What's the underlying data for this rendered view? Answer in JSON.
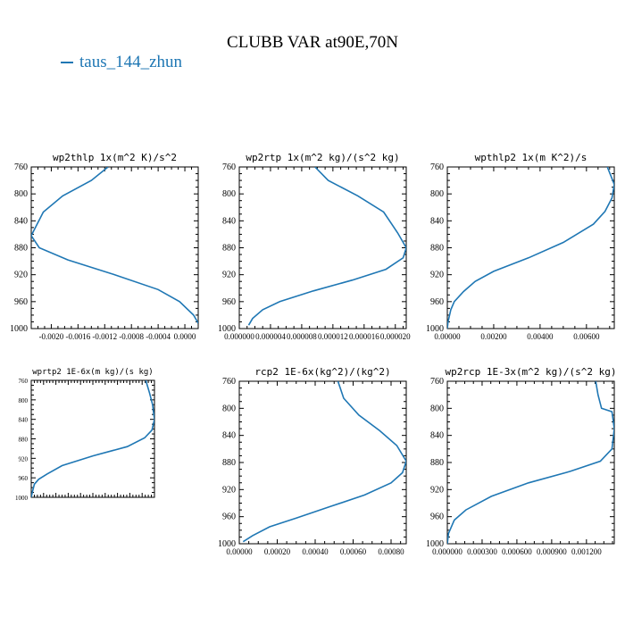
{
  "figure": {
    "title": "CLUBB VAR at90E,70N",
    "legend": [
      {
        "label": "taus_144_zhun",
        "color": "#1f77b4"
      }
    ]
  },
  "chart_data": [
    {
      "type": "line",
      "title": "wp2thlp  1x(m^2 K)/s^2",
      "xlim": [
        -0.0023,
        0.0002
      ],
      "ylim": [
        760,
        1000
      ],
      "yticks": [
        760,
        800,
        840,
        880,
        920,
        960,
        1000
      ],
      "xticks": [
        -0.002,
        -0.0016,
        -0.0012,
        -0.0008,
        -0.0004,
        0.0
      ],
      "xticklabels": [
        "-0.0020",
        "-0.0016",
        "-0.0012",
        "-0.0008",
        "-0.0004",
        "0.0000"
      ],
      "series": [
        {
          "name": "taus_144_zhun",
          "color": "#1f77b4",
          "x": [
            -0.00115,
            -0.0014,
            -0.00183,
            -0.00212,
            -0.0023,
            -0.00218,
            -0.00175,
            -0.00105,
            -0.0004,
            -8e-05,
            0.00013,
            0.0002
          ],
          "y": [
            760,
            780,
            803,
            827,
            862,
            880,
            898,
            920,
            942,
            960,
            980,
            992
          ]
        }
      ]
    },
    {
      "type": "line",
      "title": "wp2rtp  1x(m^2 kg)/(s^2 kg)",
      "xlim": [
        0.0,
        2.14e-05
      ],
      "ylim": [
        760,
        1000
      ],
      "yticks": [
        760,
        800,
        840,
        880,
        920,
        960,
        1000
      ],
      "xticks": [
        0.0,
        4e-06,
        8e-06,
        1.2e-05,
        1.6e-05,
        2e-05
      ],
      "xticklabels": [
        "0.000000",
        "0.000004",
        "0.000008",
        "0.000012",
        "0.000016",
        "0.000020"
      ],
      "series": [
        {
          "name": "taus_144_zhun",
          "color": "#1f77b4",
          "x": [
            9.7e-06,
            1.14e-05,
            1.52e-05,
            1.85e-05,
            2.03e-05,
            2.14e-05,
            2.1e-05,
            1.88e-05,
            1.45e-05,
            9.5e-06,
            5.2e-06,
            3e-06,
            1.7e-06,
            1.2e-06
          ],
          "y": [
            760,
            780,
            803,
            827,
            858,
            880,
            895,
            912,
            928,
            944,
            960,
            972,
            985,
            995
          ]
        }
      ]
    },
    {
      "type": "line",
      "title": "wpthlp2  1x(m K^2)/s",
      "xlim": [
        0.0,
        0.0072
      ],
      "ylim": [
        760,
        1000
      ],
      "yticks": [
        760,
        800,
        840,
        880,
        920,
        960,
        1000
      ],
      "xticks": [
        0.0,
        0.002,
        0.004,
        0.006
      ],
      "xticklabels": [
        "0.00000",
        "0.00200",
        "0.00400",
        "0.00600"
      ],
      "series": [
        {
          "name": "taus_144_zhun",
          "color": "#1f77b4",
          "x": [
            0.0069,
            0.0072,
            0.0071,
            0.0068,
            0.0063,
            0.005,
            0.0035,
            0.002,
            0.0012,
            0.0007,
            0.0003,
            0.00015,
            3e-05,
            0.0
          ],
          "y": [
            760,
            786,
            806,
            826,
            845,
            872,
            895,
            915,
            930,
            945,
            960,
            972,
            990,
            1000
          ]
        }
      ]
    },
    {
      "type": "line",
      "title": "wprtp2  1E-6x(m kg)/(s kg)",
      "xlim": [
        0.0,
        1.0
      ],
      "ylim": [
        760,
        1000
      ],
      "yticks": [
        760,
        800,
        840,
        880,
        920,
        960,
        1000
      ],
      "series": [
        {
          "name": "taus_144_zhun",
          "color": "#1f77b4",
          "x": [
            0.93,
            0.96,
            0.985,
            1.0,
            0.98,
            0.92,
            0.78,
            0.5,
            0.25,
            0.13,
            0.06,
            0.025,
            0.01,
            0.0
          ],
          "y": [
            760,
            786,
            810,
            840,
            862,
            878,
            896,
            915,
            935,
            952,
            963,
            973,
            988,
            1000
          ]
        }
      ]
    },
    {
      "type": "line",
      "title": "rcp2  1E-6x(kg^2)/(kg^2)",
      "xlim": [
        0.0,
        0.00088
      ],
      "ylim": [
        760,
        1000
      ],
      "yticks": [
        760,
        800,
        840,
        880,
        920,
        960,
        1000
      ],
      "xticks": [
        0.0,
        0.0002,
        0.0004,
        0.0006,
        0.0008
      ],
      "xticklabels": [
        "0.00000",
        "0.00020",
        "0.00040",
        "0.00060",
        "0.00080"
      ],
      "series": [
        {
          "name": "taus_144_zhun",
          "color": "#1f77b4",
          "x": [
            0.00052,
            0.00055,
            0.00063,
            0.00074,
            0.00083,
            0.00088,
            0.00086,
            0.0008,
            0.00066,
            0.00048,
            0.0003,
            0.00016,
            7e-05,
            2e-05
          ],
          "y": [
            760,
            785,
            810,
            833,
            855,
            878,
            895,
            910,
            928,
            945,
            962,
            975,
            988,
            997
          ]
        }
      ]
    },
    {
      "type": "line",
      "title": "wp2rcp  1E-3x(m^2 kg)/(s^2 kg)",
      "xlim": [
        0.0,
        0.00144
      ],
      "ylim": [
        760,
        1000
      ],
      "yticks": [
        760,
        800,
        840,
        880,
        920,
        960,
        1000
      ],
      "xticks": [
        0.0,
        0.0003,
        0.0006,
        0.0009,
        0.0012
      ],
      "xticklabels": [
        "0.000000",
        "0.000300",
        "0.000600",
        "0.000900",
        "0.001200"
      ],
      "series": [
        {
          "name": "taus_144_zhun",
          "color": "#1f77b4",
          "x": [
            0.00128,
            0.0013,
            0.00133,
            0.00142,
            0.00144,
            0.00142,
            0.00132,
            0.00106,
            0.0007,
            0.00038,
            0.00016,
            6e-05,
            1e-05,
            0.0
          ],
          "y": [
            760,
            780,
            800,
            805,
            830,
            860,
            878,
            893,
            910,
            930,
            950,
            965,
            985,
            1000
          ]
        }
      ]
    }
  ]
}
